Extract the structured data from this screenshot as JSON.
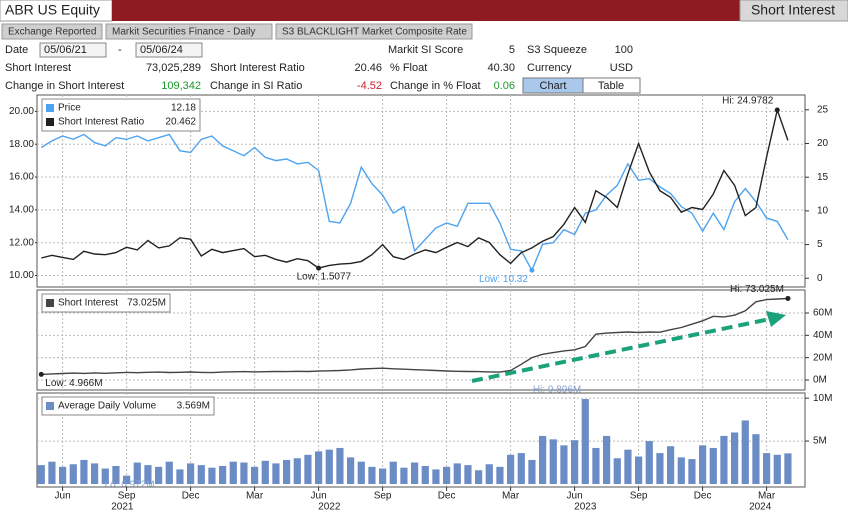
{
  "header": {
    "ticker": "ABR US Equity",
    "function": "Short Interest"
  },
  "tabs": [
    "Exchange Reported",
    "Markit Securities Finance - Daily",
    "S3 BLACKLIGHT Market Composite Rate"
  ],
  "fields": {
    "date_label": "Date",
    "date_start": "05/06/21",
    "date_sep": "-",
    "date_end": "05/06/24",
    "si_score_label": "Markit SI Score",
    "si_score": 5,
    "squeeze_label": "S3 Squeeze",
    "squeeze": 100,
    "si_label": "Short Interest",
    "si": "73,025,289",
    "sir_label": "Short Interest Ratio",
    "sir": 20.46,
    "float_label": "% Float",
    "float": "40.30",
    "currency_label": "Currency",
    "currency": "USD",
    "csi_label": "Change in Short Interest",
    "csi": "109,342",
    "csir_label": "Change in SI Ratio",
    "csir": -4.52,
    "cfloat_label": "Change in % Float",
    "cfloat": 0.06,
    "view_chart": "Chart",
    "view_table": "Table"
  },
  "x_axis": {
    "xlim": [
      -0.4,
      71.6
    ],
    "xticks": [
      {
        "value": 2,
        "label": "Jun"
      },
      {
        "value": 8,
        "label": "Sep"
      },
      {
        "value": 14,
        "label": "Dec"
      },
      {
        "value": 20,
        "label": "Mar"
      },
      {
        "value": 26,
        "label": "Jun"
      },
      {
        "value": 32,
        "label": "Sep"
      },
      {
        "value": 38,
        "label": "Dec"
      },
      {
        "value": 44,
        "label": "Mar"
      },
      {
        "value": 50,
        "label": "Jun"
      },
      {
        "value": 56,
        "label": "Sep"
      },
      {
        "value": 62,
        "label": "Dec"
      },
      {
        "value": 68,
        "label": "Mar"
      }
    ],
    "years": [
      {
        "value": 7.6,
        "label": "2021"
      },
      {
        "value": 27,
        "label": "2022"
      },
      {
        "value": 51,
        "label": "2023"
      },
      {
        "value": 67.4,
        "label": "2024"
      }
    ]
  },
  "chart_data": [
    {
      "type": "line",
      "grid": true,
      "yaxis_position": "left",
      "ylim": [
        9.3,
        21.0
      ],
      "yticks": [
        {
          "value": 10,
          "label": "10.00"
        },
        {
          "value": 12,
          "label": "12.00"
        },
        {
          "value": 14,
          "label": "14.00"
        },
        {
          "value": 16,
          "label": "16.00"
        },
        {
          "value": 18,
          "label": "18.00"
        },
        {
          "value": 20,
          "label": "20.00"
        }
      ],
      "y2lim": [
        -1.3,
        27.2
      ],
      "y2ticks": [
        0,
        5,
        10,
        15,
        20,
        25
      ],
      "series": [
        {
          "name": "Price",
          "color": "#4da3f0",
          "last_label": "12.18",
          "values": [
            17.8,
            18.2,
            18.5,
            18.3,
            18.6,
            18.1,
            17.9,
            18.4,
            18.3,
            18.5,
            18.2,
            18.4,
            18.6,
            17.6,
            17.5,
            18.3,
            18.5,
            17.9,
            17.6,
            17.3,
            17.8,
            17.2,
            17.0,
            17.1,
            16.8,
            16.9,
            16.4,
            13.3,
            13.2,
            14.4,
            16.6,
            15.6,
            14.9,
            13.8,
            14.2,
            11.5,
            12.2,
            12.9,
            13.2,
            13.0,
            14.4,
            14.4,
            14.4,
            13.2,
            11.6,
            11.5,
            10.32,
            11.9,
            12.0,
            12.8,
            12.5,
            13.8,
            14.0,
            14.9,
            15.5,
            16.8,
            15.8,
            15.9,
            15.4,
            15.0,
            14.2,
            13.8,
            12.7,
            13.8,
            12.8,
            14.5,
            15.3,
            14.5,
            13.5,
            13.3,
            12.18
          ]
        },
        {
          "name": "Short Interest Ratio",
          "color": "#222222",
          "axis": "y2",
          "last_label": "20.462",
          "values": [
            3.0,
            3.4,
            3.1,
            2.8,
            4.0,
            3.6,
            3.5,
            3.8,
            4.6,
            4.2,
            5.6,
            4.5,
            4.8,
            6.0,
            5.8,
            3.3,
            4.3,
            3.8,
            4.1,
            4.4,
            3.2,
            3.4,
            2.8,
            2.4,
            2.9,
            2.6,
            1.5077,
            1.9,
            2.1,
            2.2,
            2.5,
            3.5,
            5.0,
            3.2,
            2.8,
            3.6,
            4.2,
            3.8,
            4.6,
            5.3,
            4.7,
            6.0,
            5.3,
            3.5,
            2.2,
            3.8,
            4.5,
            5.5,
            6.2,
            8.0,
            10.5,
            8.3,
            13.0,
            12.0,
            10.5,
            15.5,
            20.0,
            15.8,
            13.0,
            12.0,
            9.8,
            10.5,
            10.2,
            12.5,
            16.0,
            13.8,
            9.3,
            10.5,
            18.0,
            24.9782,
            20.462
          ]
        }
      ],
      "annotations": [
        {
          "text": "Low: 1.5077",
          "x": 26,
          "y": 1.5077,
          "axis": "y2",
          "color": "#222222"
        },
        {
          "text": "Low: 10.32",
          "x": 46,
          "y": 10.32,
          "axis": "y",
          "color": "#4da3f0"
        },
        {
          "text": "Hi: 24.9782",
          "x": 69,
          "y": 24.9782,
          "axis": "y2",
          "color": "#222222"
        }
      ]
    },
    {
      "type": "line",
      "grid": true,
      "yaxis_position": "right",
      "ylim": [
        -9,
        80.6
      ],
      "yticks": [
        {
          "value": 0,
          "label": "0M"
        },
        {
          "value": 20,
          "label": "20M"
        },
        {
          "value": 40,
          "label": "40M"
        },
        {
          "value": 60,
          "label": "60M"
        }
      ],
      "series": [
        {
          "name": "Short Interest",
          "color": "#444444",
          "last_label": "73.025M",
          "values": [
            4.966,
            5.4,
            5.8,
            6.1,
            5.9,
            6.3,
            6.0,
            6.4,
            6.8,
            6.5,
            6.9,
            7.0,
            6.7,
            6.9,
            7.1,
            6.8,
            6.6,
            7.0,
            7.3,
            7.5,
            7.2,
            7.4,
            7.6,
            7.5,
            7.8,
            7.6,
            7.9,
            8.2,
            8.5,
            9.0,
            9.8,
            10.2,
            10.5,
            10.0,
            9.6,
            9.2,
            8.8,
            8.5,
            8.0,
            7.8,
            7.6,
            7.5,
            7.2,
            7.0,
            8.5,
            14.0,
            20.0,
            23.0,
            24.5,
            26.0,
            27.0,
            30.0,
            41.0,
            42.0,
            42.5,
            43.0,
            42.5,
            43.0,
            42.8,
            45.0,
            47.0,
            50.0,
            53.0,
            57.0,
            56.5,
            58.0,
            62.0,
            70.0,
            72.0,
            72.5,
            73.025
          ]
        }
      ],
      "annotations": [
        {
          "text": "Low: 4.966M",
          "x": 0,
          "y": 4.966,
          "axis": "y",
          "color": "#222222"
        },
        {
          "text": "Hi: 73.025M",
          "x": 70,
          "y": 73.025,
          "axis": "y",
          "color": "#222222"
        }
      ]
    },
    {
      "type": "bar",
      "grid": true,
      "yaxis_position": "right",
      "ylim": [
        -0.35,
        10.6
      ],
      "yticks": [
        {
          "value": 5,
          "label": "5M"
        },
        {
          "value": 10,
          "label": "10M"
        }
      ],
      "series": [
        {
          "name": "Average Daily Volume",
          "color": "#6b8cc4",
          "last_label": "3.569M",
          "values": [
            2.2,
            2.6,
            2.0,
            2.3,
            2.8,
            2.4,
            1.8,
            2.1,
            0.972,
            2.5,
            2.2,
            2.0,
            2.6,
            1.7,
            2.4,
            2.2,
            1.9,
            2.1,
            2.6,
            2.5,
            2.0,
            2.7,
            2.4,
            2.8,
            3.0,
            3.4,
            3.8,
            4.0,
            4.2,
            3.1,
            2.6,
            2.0,
            1.8,
            2.6,
            1.9,
            2.5,
            2.1,
            1.7,
            2.0,
            2.4,
            2.2,
            1.6,
            2.3,
            2.0,
            3.4,
            3.6,
            2.8,
            5.6,
            5.2,
            4.5,
            5.1,
            9.896,
            4.2,
            5.6,
            3.0,
            4.0,
            3.2,
            5.0,
            3.6,
            4.4,
            3.1,
            2.9,
            4.5,
            4.2,
            5.6,
            6.0,
            7.4,
            5.8,
            3.6,
            3.4,
            3.569
          ]
        }
      ],
      "annotations": [
        {
          "text": "Lo: 0.972M",
          "x": 8,
          "y": 0.972,
          "axis": "y",
          "color": "#8aa4d0"
        },
        {
          "text": "Hi: 9.896M",
          "x": 51,
          "y": 9.896,
          "axis": "y",
          "color": "#8aa4d0"
        }
      ]
    }
  ]
}
